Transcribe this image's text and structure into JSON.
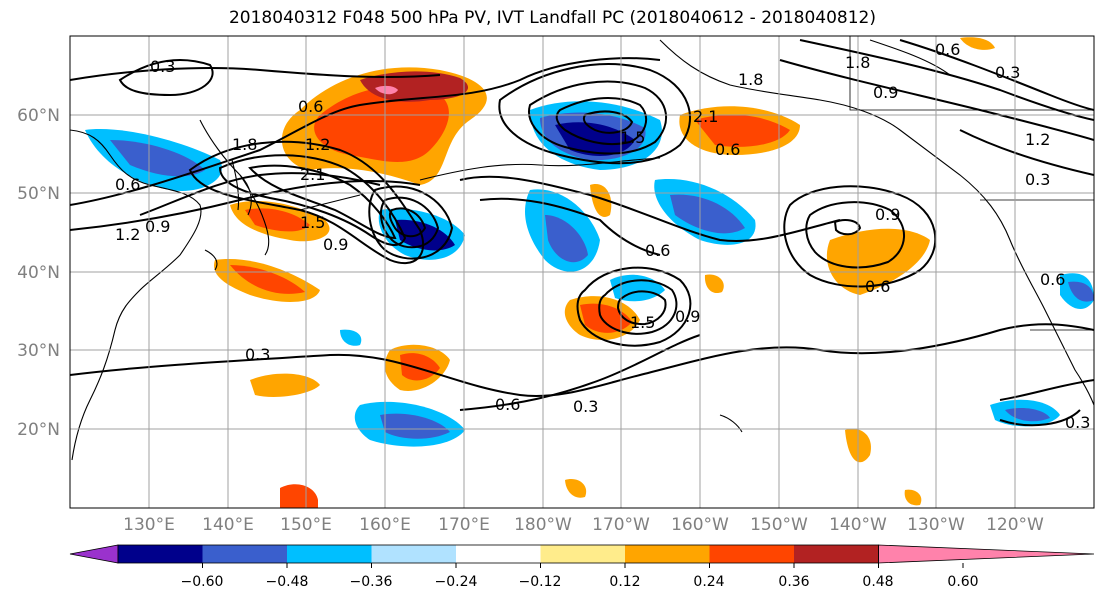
{
  "title": "2018040312 F048 500 hPa PV, IVT Landfall PC (2018040612 - 2018040812)",
  "map": {
    "lat_ticks": [
      "20°N",
      "30°N",
      "40°N",
      "50°N",
      "60°N"
    ],
    "lon_ticks": [
      "130°E",
      "140°E",
      "150°E",
      "160°E",
      "170°E",
      "180°W",
      "170°W",
      "160°W",
      "150°W",
      "140°W",
      "130°W",
      "120°W"
    ],
    "contour_labels": [
      "0.3",
      "0.6",
      "0.9",
      "1.2",
      "1.5",
      "1.8",
      "2.1"
    ],
    "ocean_color": "#ffffff",
    "coastline_color": "#000000",
    "grid_color": "#a0a0a0"
  },
  "colorbar": {
    "ticks": [
      "−0.60",
      "−0.48",
      "−0.36",
      "−0.24",
      "−0.12",
      "0.12",
      "0.24",
      "0.36",
      "0.48",
      "0.60"
    ],
    "colors": [
      "#9a32cd",
      "#00008b",
      "#3a5fcd",
      "#00bfff",
      "#b0e2ff",
      "#ffffff",
      "#ffec8b",
      "#ffa500",
      "#ff4500",
      "#b22222",
      "#ff82ab"
    ]
  }
}
